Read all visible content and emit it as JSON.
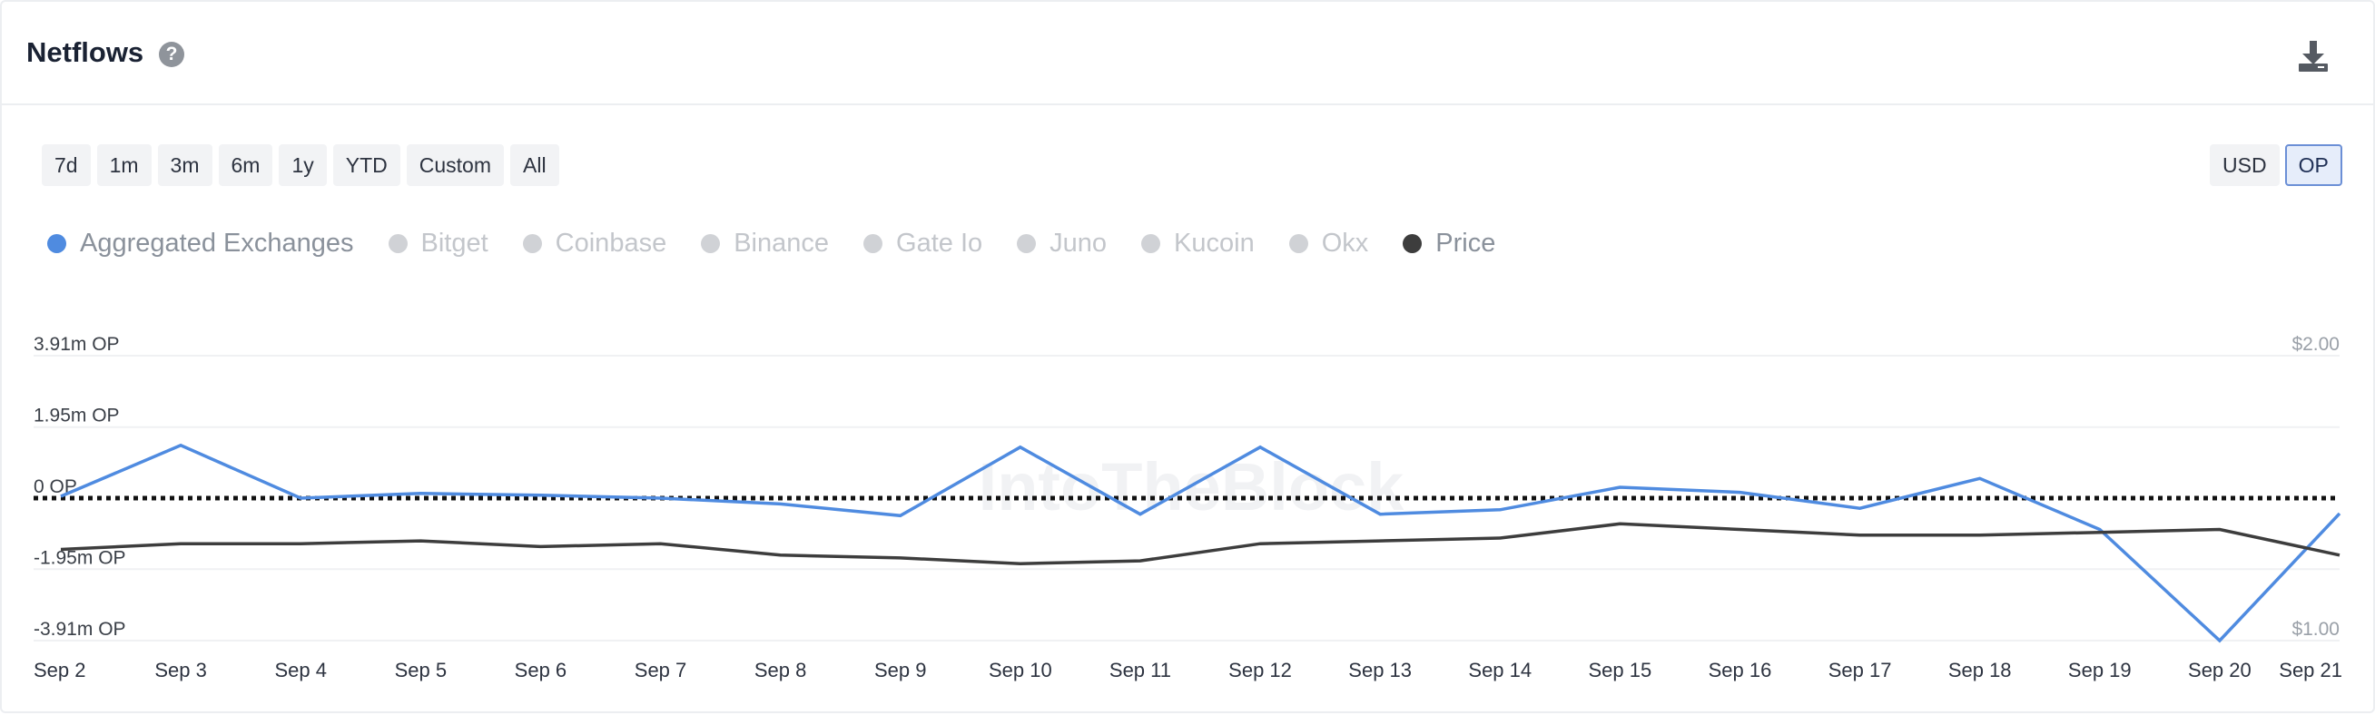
{
  "header": {
    "title": "Netflows",
    "help_icon": "?"
  },
  "periods": [
    "7d",
    "1m",
    "3m",
    "6m",
    "1y",
    "YTD",
    "Custom",
    "All"
  ],
  "currency": {
    "options": [
      "USD",
      "OP"
    ],
    "selected": "OP"
  },
  "legend": [
    {
      "label": "Aggregated Exchanges",
      "color": "#4f8be0",
      "active": true
    },
    {
      "label": "Bitget",
      "color": "#d0d2d6",
      "active": false
    },
    {
      "label": "Coinbase",
      "color": "#d0d2d6",
      "active": false
    },
    {
      "label": "Binance",
      "color": "#d0d2d6",
      "active": false
    },
    {
      "label": "Gate Io",
      "color": "#d0d2d6",
      "active": false
    },
    {
      "label": "Juno",
      "color": "#d0d2d6",
      "active": false
    },
    {
      "label": "Kucoin",
      "color": "#d0d2d6",
      "active": false
    },
    {
      "label": "Okx",
      "color": "#d0d2d6",
      "active": false
    },
    {
      "label": "Price",
      "color": "#3d3d3d",
      "active": true
    }
  ],
  "watermark": "IntoTheBlock",
  "chart_data": {
    "type": "line",
    "categories": [
      "Sep 2",
      "Sep 3",
      "Sep 4",
      "Sep 5",
      "Sep 6",
      "Sep 7",
      "Sep 8",
      "Sep 9",
      "Sep 10",
      "Sep 11",
      "Sep 12",
      "Sep 13",
      "Sep 14",
      "Sep 15",
      "Sep 16",
      "Sep 17",
      "Sep 18",
      "Sep 19",
      "Sep 20",
      "Sep 21"
    ],
    "y_left": {
      "ticks": [
        "3.91m OP",
        "1.95m OP",
        "0 OP",
        "-1.95m OP",
        "-3.91m OP"
      ],
      "tick_values": [
        3910000,
        1950000,
        0,
        -1950000,
        -3910000
      ],
      "ylim": [
        -3910000,
        3910000
      ]
    },
    "y_right": {
      "ticks": [
        "$2.00",
        "$1.00"
      ],
      "tick_values": [
        2.0,
        1.0
      ],
      "ylim": [
        1.0,
        2.0
      ]
    },
    "series": [
      {
        "name": "Aggregated Exchanges",
        "axis": "left",
        "color": "#4f8be0",
        "values": [
          50000,
          1450000,
          0,
          130000,
          80000,
          0,
          -160000,
          -480000,
          1400000,
          -440000,
          1400000,
          -440000,
          -320000,
          300000,
          160000,
          -280000,
          540000,
          -860000,
          -3910000,
          -420000
        ]
      },
      {
        "name": "Price",
        "axis": "right",
        "color": "#3d3d3d",
        "values": [
          1.32,
          1.34,
          1.34,
          1.35,
          1.33,
          1.34,
          1.3,
          1.29,
          1.27,
          1.28,
          1.34,
          1.35,
          1.36,
          1.41,
          1.39,
          1.37,
          1.37,
          1.38,
          1.39,
          1.3
        ]
      }
    ],
    "zero_line": {
      "style": "dotted",
      "value": 0
    },
    "grid": true,
    "legend_position": "top-left"
  }
}
